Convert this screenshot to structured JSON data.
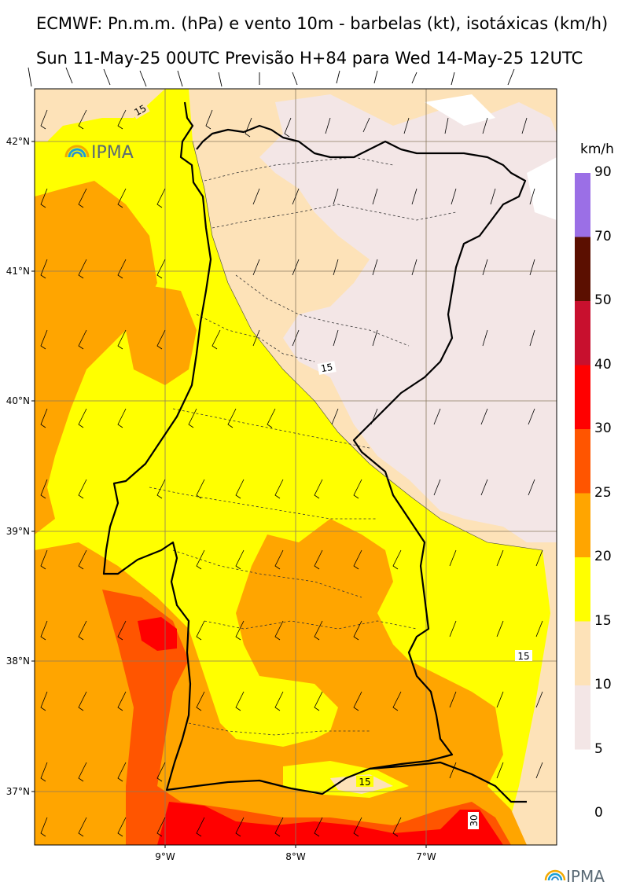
{
  "header": {
    "title_line1": "ECMWF: Pn.m.m. (hPa) e vento 10m - barbelas (kt), isotáxicas (km/h)",
    "title_line2": "Sun 11-May-25 00UTC Previsão H+84 para Wed 14-May-25 12UTC"
  },
  "colorbar": {
    "unit": "km/h",
    "labels": [
      "90",
      "70",
      "50",
      "40",
      "30",
      "25",
      "20",
      "15",
      "10",
      "5",
      "0"
    ],
    "colors": [
      "#9b6fe6",
      "#5b0f00",
      "#c8102e",
      "#ff0000",
      "#ff5500",
      "#ffa500",
      "#ffff00",
      "#fde2b8",
      "#f3e6e6"
    ]
  },
  "map": {
    "lat_labels": [
      "42°N",
      "41°N",
      "40°N",
      "39°N",
      "38°N",
      "37°N"
    ],
    "lon_labels": [
      "9°W",
      "8°W",
      "7°W"
    ],
    "contour_labels": [
      "15",
      "15",
      "15",
      "15",
      "30"
    ],
    "colors": {
      "background": "#ffff00",
      "coast": "#000000",
      "grid": "#8a7a60"
    }
  },
  "logos": {
    "top_text": "IPMA",
    "bottom_text": "IPMA"
  }
}
